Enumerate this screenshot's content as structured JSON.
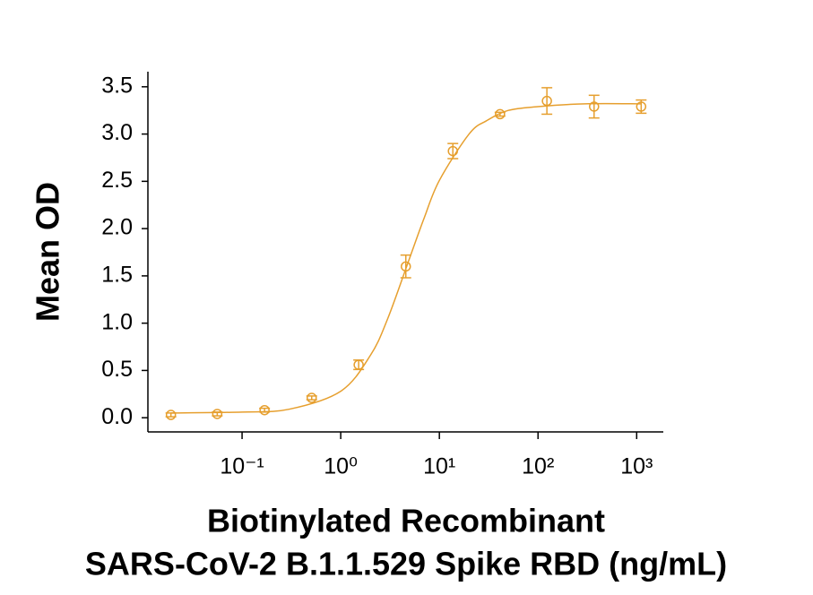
{
  "chart_data": {
    "type": "scatter",
    "ylabel": "Mean OD",
    "xlabel": [
      "Biotinylated Recombinant",
      "SARS-CoV-2 B.1.1.529 Spike RBD (ng/mL)"
    ],
    "xscale": "log",
    "xlim": [
      0.0111,
      1862
    ],
    "ylim": [
      -0.15,
      3.65
    ],
    "xticks": [
      {
        "value": 0.1,
        "label": "10⁻¹"
      },
      {
        "value": 1,
        "label": "10⁰"
      },
      {
        "value": 10,
        "label": "10¹"
      },
      {
        "value": 100,
        "label": "10²"
      },
      {
        "value": 1000,
        "label": "10³"
      }
    ],
    "yticks": [
      {
        "value": 0,
        "label": "0.0"
      },
      {
        "value": 0.5,
        "label": "0.5"
      },
      {
        "value": 1,
        "label": "1.0"
      },
      {
        "value": 1.5,
        "label": "1.5"
      },
      {
        "value": 2,
        "label": "2.0"
      },
      {
        "value": 2.5,
        "label": "2.5"
      },
      {
        "value": 3,
        "label": "3.0"
      },
      {
        "value": 3.5,
        "label": "3.5"
      }
    ],
    "grid": false,
    "series": [
      {
        "kind": "points",
        "color": "#e69f2e",
        "x": [
          0.019,
          0.056,
          0.169,
          0.508,
          1.52,
          4.57,
          13.7,
          41.2,
          123,
          370,
          1111
        ],
        "values": [
          0.03,
          0.04,
          0.08,
          0.21,
          0.56,
          1.6,
          2.82,
          3.21,
          3.35,
          3.29,
          3.29
        ],
        "errors": [
          0.02,
          0.02,
          0.02,
          0.02,
          0.05,
          0.12,
          0.08,
          0.02,
          0.14,
          0.12,
          0.07
        ]
      },
      {
        "kind": "fit",
        "color": "#e69f2e",
        "x": [
          0.019,
          0.1,
          0.3,
          1,
          2,
          3,
          5,
          7,
          10,
          20,
          30,
          50,
          100,
          300,
          1111
        ],
        "values": [
          0.05,
          0.06,
          0.09,
          0.28,
          0.66,
          1.05,
          1.69,
          2.11,
          2.51,
          3.0,
          3.14,
          3.25,
          3.29,
          3.32,
          3.32
        ]
      }
    ]
  }
}
